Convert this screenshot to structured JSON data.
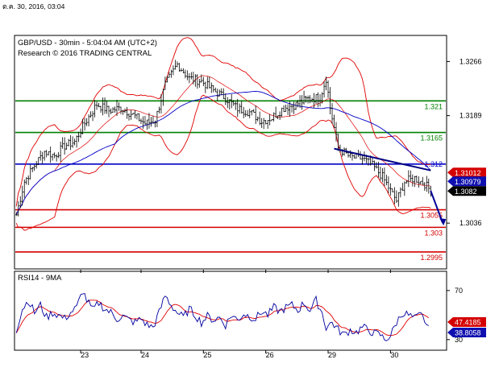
{
  "header": {
    "date_text": "ต.ค. 30, 2016, 03:04"
  },
  "main_panel": {
    "title_line1": "GBP/USD - 30min - 5:04:04 AM (UTC+2)",
    "title_line2": "Research © 2016 TRADING CENTRAL"
  },
  "rsi_panel": {
    "title": "RSI14 - 9MA"
  },
  "colors": {
    "price_bars": "#000000",
    "resistance": "#008000",
    "support": "#d40000",
    "pivot": "#0000c8",
    "bollinger": "#e00000",
    "moving_average": "#0000c8",
    "trend_line": "#000080",
    "forecast_arrow": "#000099",
    "rsi_line": "#0000a0",
    "rsi_ma": "#e00000",
    "axis": "#000000",
    "background": "#ffffff"
  },
  "chart_data": [
    {
      "type": "candlestick",
      "title": "GBP/USD - 30min - 5:04:04 AM (UTC+2)",
      "x_ticks": [
        "23",
        "24",
        "25",
        "26",
        "29",
        "30"
      ],
      "y_ticks": [
        1.3266,
        1.3189,
        1.3036
      ],
      "ylim": [
        1.2972,
        1.3302
      ],
      "grid": false,
      "horizontal_levels": [
        {
          "value": 1.321,
          "label": "1.321",
          "role": "resistance"
        },
        {
          "value": 1.3165,
          "label": "1.3165",
          "role": "resistance"
        },
        {
          "value": 1.312,
          "label": "1.312",
          "role": "pivot"
        },
        {
          "value": 1.3055,
          "label": "1.3055",
          "role": "support"
        },
        {
          "value": 1.303,
          "label": "1.303",
          "role": "support"
        },
        {
          "value": 1.2995,
          "label": "1.2995",
          "role": "support"
        }
      ],
      "price_tags": [
        {
          "value": 1.31012,
          "label": "1.31012",
          "style": "red"
        },
        {
          "value": 1.30979,
          "label": "1.30979",
          "style": "blue"
        },
        {
          "value": 1.3082,
          "label": "1.3082",
          "style": "black"
        }
      ],
      "close_path": [
        [
          0,
          1.3048
        ],
        [
          4,
          1.3095
        ],
        [
          9,
          1.3118
        ],
        [
          14,
          1.3138
        ],
        [
          19,
          1.3132
        ],
        [
          24,
          1.3146
        ],
        [
          29,
          1.3152
        ],
        [
          34,
          1.3178
        ],
        [
          40,
          1.3205
        ],
        [
          46,
          1.3196
        ],
        [
          52,
          1.32
        ],
        [
          58,
          1.319
        ],
        [
          64,
          1.3178
        ],
        [
          69,
          1.3182
        ],
        [
          74,
          1.3233
        ],
        [
          80,
          1.3262
        ],
        [
          86,
          1.3242
        ],
        [
          92,
          1.3238
        ],
        [
          98,
          1.3225
        ],
        [
          104,
          1.3214
        ],
        [
          110,
          1.3199
        ],
        [
          116,
          1.3194
        ],
        [
          122,
          1.3181
        ],
        [
          127,
          1.3186
        ],
        [
          133,
          1.32
        ],
        [
          139,
          1.3205
        ],
        [
          145,
          1.3213
        ],
        [
          151,
          1.3215
        ],
        [
          154,
          1.3242
        ],
        [
          156,
          1.32
        ],
        [
          160,
          1.3143
        ],
        [
          166,
          1.313
        ],
        [
          172,
          1.3128
        ],
        [
          177,
          1.3118
        ],
        [
          182,
          1.3102
        ],
        [
          186,
          1.3082
        ],
        [
          189,
          1.3068
        ],
        [
          193,
          1.3095
        ],
        [
          198,
          1.31
        ],
        [
          203,
          1.3092
        ],
        [
          206,
          1.3082
        ]
      ],
      "x_range_bars": [
        0,
        214
      ],
      "day_starts": [
        21,
        51,
        82,
        113,
        144,
        175
      ]
    },
    {
      "type": "line",
      "title": "RSI14 - 9MA",
      "y_ticks": [
        70,
        30
      ],
      "ylim": [
        22,
        85
      ],
      "price_tags": [
        {
          "value": 47.4185,
          "label": "47.4185",
          "style": "red"
        },
        {
          "value": 38.8058,
          "label": "38.8058",
          "style": "blue"
        }
      ],
      "rsi_path": [
        [
          0,
          38
        ],
        [
          3,
          55
        ],
        [
          6,
          62
        ],
        [
          9,
          52
        ],
        [
          12,
          58
        ],
        [
          15,
          48
        ],
        [
          18,
          52
        ],
        [
          21,
          50
        ],
        [
          24,
          47
        ],
        [
          27,
          52
        ],
        [
          30,
          56
        ],
        [
          33,
          70
        ],
        [
          35,
          62
        ],
        [
          38,
          54
        ],
        [
          41,
          60
        ],
        [
          44,
          55
        ],
        [
          47,
          52
        ],
        [
          50,
          47
        ],
        [
          53,
          49
        ],
        [
          56,
          46
        ],
        [
          59,
          44
        ],
        [
          62,
          47
        ],
        [
          65,
          42
        ],
        [
          68,
          40
        ],
        [
          71,
          52
        ],
        [
          74,
          66
        ],
        [
          77,
          58
        ],
        [
          80,
          52
        ],
        [
          83,
          48
        ],
        [
          86,
          55
        ],
        [
          89,
          50
        ],
        [
          92,
          44
        ],
        [
          95,
          49
        ],
        [
          98,
          46
        ],
        [
          101,
          48
        ],
        [
          104,
          42
        ],
        [
          107,
          50
        ],
        [
          110,
          46
        ],
        [
          113,
          51
        ],
        [
          116,
          49
        ],
        [
          119,
          47
        ],
        [
          122,
          53
        ],
        [
          125,
          50
        ],
        [
          128,
          56
        ],
        [
          131,
          53
        ],
        [
          134,
          56
        ],
        [
          137,
          58
        ],
        [
          140,
          54
        ],
        [
          143,
          60
        ],
        [
          146,
          54
        ],
        [
          149,
          62
        ],
        [
          152,
          52
        ],
        [
          154,
          40
        ],
        [
          157,
          44
        ],
        [
          160,
          38
        ],
        [
          163,
          34
        ],
        [
          166,
          38
        ],
        [
          169,
          36
        ],
        [
          172,
          40
        ],
        [
          175,
          38
        ],
        [
          178,
          35
        ],
        [
          181,
          34
        ],
        [
          183,
          30
        ],
        [
          186,
          33
        ],
        [
          189,
          44
        ],
        [
          192,
          52
        ],
        [
          195,
          50
        ],
        [
          198,
          47
        ],
        [
          201,
          50
        ],
        [
          203,
          46
        ],
        [
          205,
          38
        ]
      ]
    }
  ]
}
